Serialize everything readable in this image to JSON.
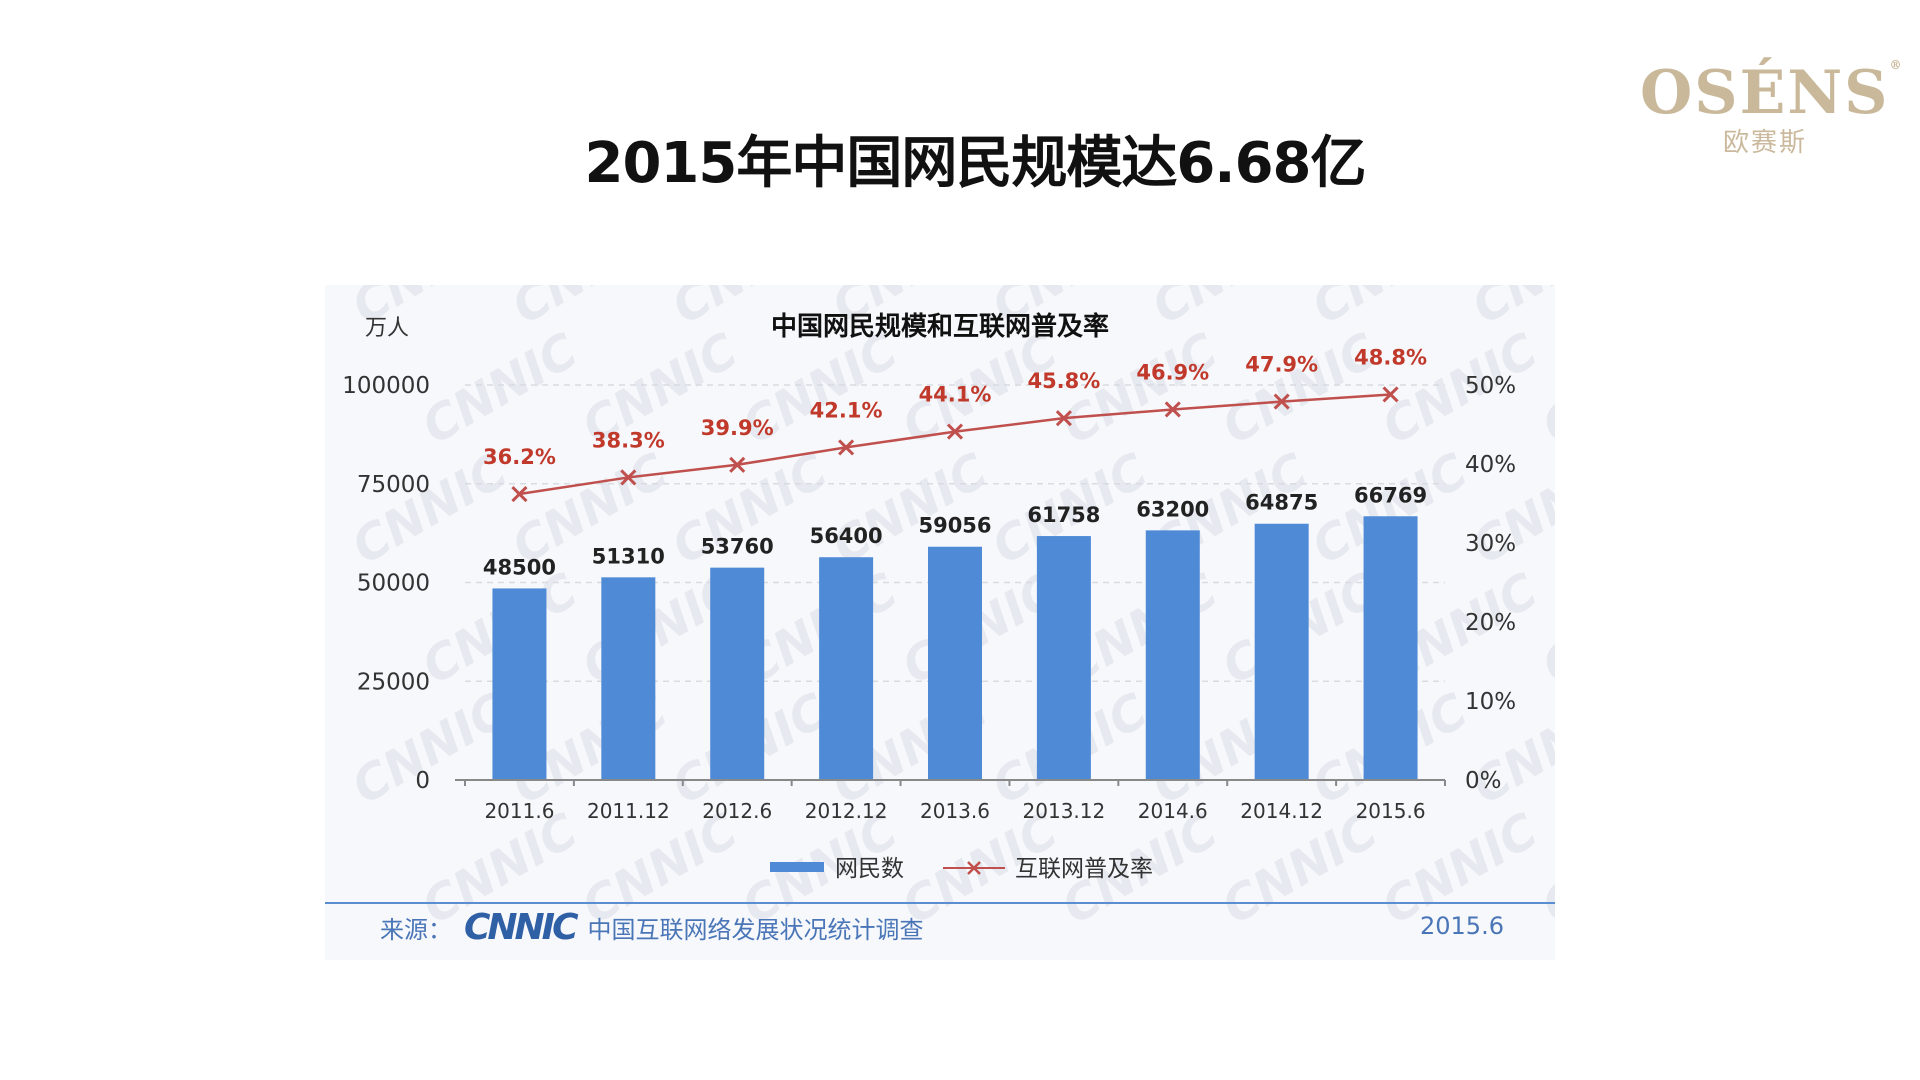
{
  "slide": {
    "title": "2015年中国网民规模达6.68亿"
  },
  "logo": {
    "name": "OSÉNS",
    "registered": "®",
    "subtitle": "欧赛斯"
  },
  "source": {
    "label": "来源：",
    "logo_text": "CNNIC",
    "text": "中国互联网络发展状况统计调查",
    "date": "2015.6"
  },
  "chart_data": {
    "type": "bar",
    "title": "中国网民规模和互联网普及率",
    "ylabel": "万人",
    "ylim": [
      0,
      100000
    ],
    "y_ticks": [
      "0",
      "25000",
      "50000",
      "75000",
      "100000"
    ],
    "y2lim": [
      0,
      50
    ],
    "y2_ticks": [
      "0%",
      "10%",
      "20%",
      "30%",
      "40%",
      "50%"
    ],
    "categories": [
      "2011.6",
      "2011.12",
      "2012.6",
      "2012.12",
      "2013.6",
      "2013.12",
      "2014.6",
      "2014.12",
      "2015.6"
    ],
    "series": [
      {
        "name": "网民数",
        "type": "bar",
        "axis": "left",
        "color": "#4f8ad6",
        "values": [
          48500,
          51310,
          53760,
          56400,
          59056,
          61758,
          63200,
          64875,
          66769
        ],
        "labels": [
          "48500",
          "51310",
          "53760",
          "56400",
          "59056",
          "61758",
          "63200",
          "64875",
          "66769"
        ]
      },
      {
        "name": "互联网普及率",
        "type": "line",
        "axis": "right",
        "color": "#c0504d",
        "values": [
          36.2,
          38.3,
          39.9,
          42.1,
          44.1,
          45.8,
          46.9,
          47.9,
          48.8
        ],
        "labels": [
          "36.2%",
          "38.3%",
          "39.9%",
          "42.1%",
          "44.1%",
          "45.8%",
          "46.9%",
          "47.9%",
          "48.8%"
        ]
      }
    ],
    "grid": true,
    "legend": "bottom",
    "watermark": "CNNIC"
  }
}
